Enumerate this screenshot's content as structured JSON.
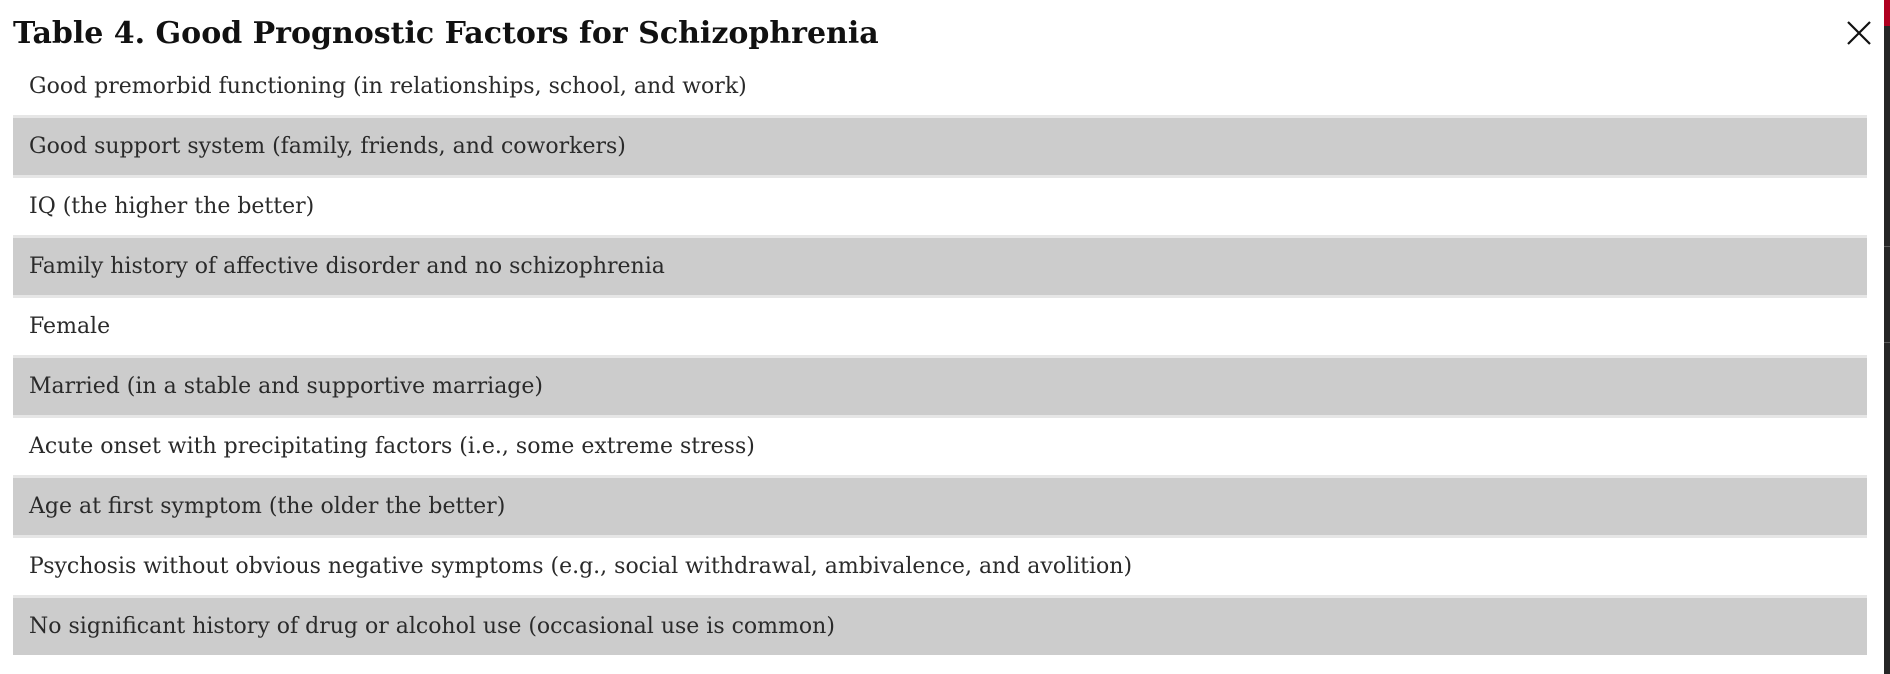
{
  "modal": {
    "title": "Table 4. Good Prognostic Factors for Schizophrenia",
    "close_icon": "close-icon"
  },
  "rows": [
    "Good premorbid functioning (in relationships, school, and work)",
    "Good support system (family, friends, and coworkers)",
    "IQ (the higher the better)",
    "Family history of affective disorder and no schizophrenia",
    "Female",
    "Married (in a stable and supportive marriage)",
    "Acute onset with precipitating factors (i.e., some extreme stress)",
    "Age at first symptom (the older the better)",
    "Psychosis without obvious negative symptoms (e.g., social withdrawal, ambivalence, and avolition)",
    "No significant history of drug or alcohol use (occasional use is common)"
  ],
  "colors": {
    "row_shaded": "#cccccc",
    "row_plain": "#ffffff",
    "accent": "#b00020"
  }
}
